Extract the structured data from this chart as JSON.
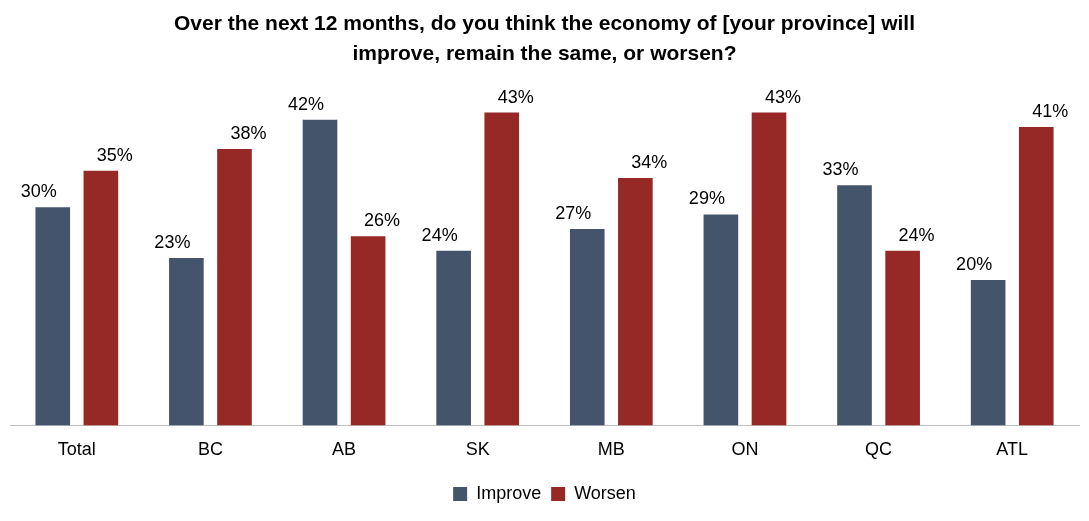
{
  "chart_data": {
    "type": "bar",
    "title": "Over the next 12 months, do you think the economy of [your province] will improve, remain the same, or worsen?",
    "categories": [
      "Total",
      "BC",
      "AB",
      "SK",
      "MB",
      "ON",
      "QC",
      "ATL"
    ],
    "series": [
      {
        "name": "Improve",
        "color": "#44546a",
        "values": [
          30,
          23,
          42,
          24,
          27,
          29,
          33,
          20
        ],
        "value_labels": [
          "30%",
          "23%",
          "42%",
          "24%",
          "27%",
          "29%",
          "33%",
          "20%"
        ]
      },
      {
        "name": "Worsen",
        "color": "#962826",
        "values": [
          35,
          38,
          26,
          43,
          34,
          43,
          24,
          41
        ],
        "value_labels": [
          "35%",
          "38%",
          "26%",
          "43%",
          "34%",
          "43%",
          "24%",
          "41%"
        ]
      }
    ],
    "grid": false,
    "legend": "bottom",
    "tick_labels": "x"
  }
}
